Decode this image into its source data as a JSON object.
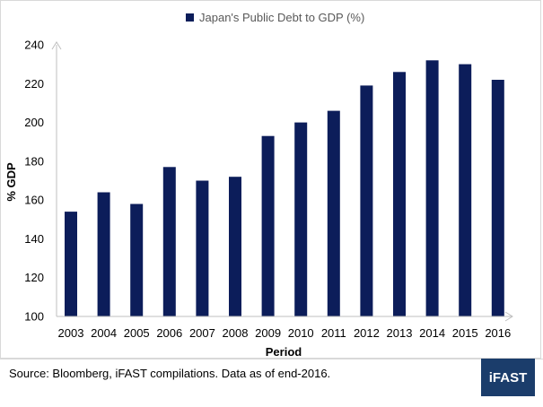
{
  "chart_data": {
    "type": "bar",
    "legend_label": "Japan's Public Debt to GDP (%)",
    "legend_position": "top-center",
    "ylabel": "% GDP",
    "xlabel": "Period",
    "ylim": [
      100,
      240
    ],
    "yticks": [
      100,
      120,
      140,
      160,
      180,
      200,
      220,
      240
    ],
    "categories": [
      "2003",
      "2004",
      "2005",
      "2006",
      "2007",
      "2008",
      "2009",
      "2010",
      "2011",
      "2012",
      "2013",
      "2014",
      "2015",
      "2016"
    ],
    "values": [
      154,
      164,
      158,
      177,
      170,
      172,
      193,
      200,
      206,
      219,
      226,
      232,
      230,
      222
    ],
    "bar_color": "#0c1d5a",
    "grid": false
  },
  "footer": {
    "source_text": "Source: Bloomberg, iFAST compilations. Data as of end-2016.",
    "brand_label": "iFAST",
    "brand_color": "#1b3d6b"
  }
}
